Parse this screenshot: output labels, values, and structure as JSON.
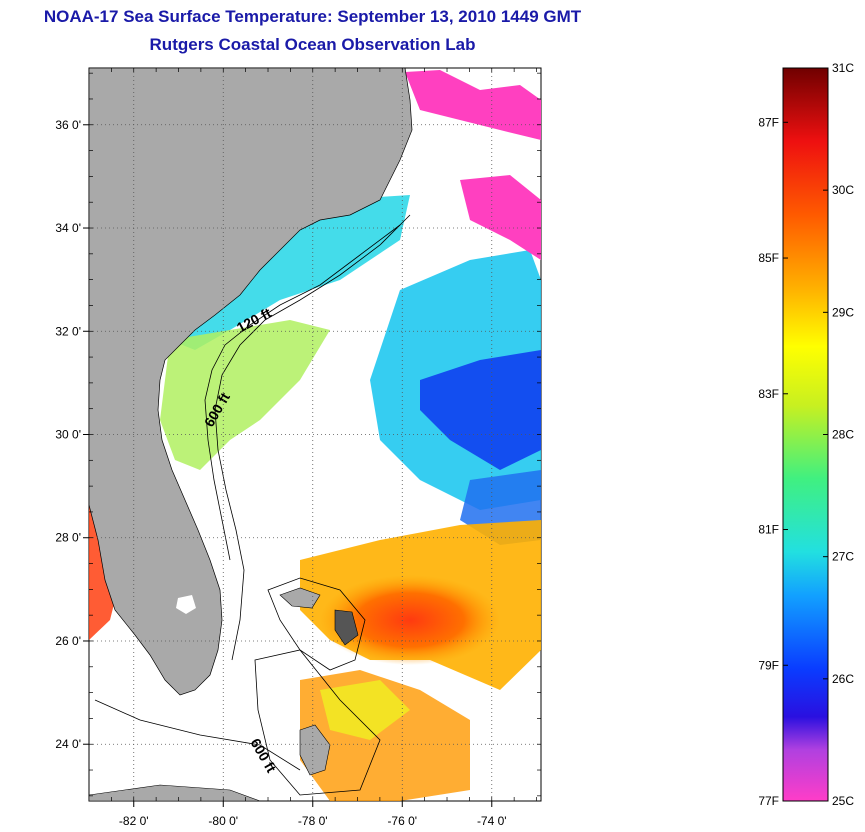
{
  "title": "NOAA-17 Sea Surface Temperature:  September 13, 2010 1449 GMT",
  "subtitle": "Rutgers Coastal Ocean Observation Lab",
  "map": {
    "lon_range": [
      -83.0,
      -72.9
    ],
    "lat_range": [
      22.9,
      37.1
    ],
    "x_ticks": [
      {
        "value": -82,
        "label": "-82 0'"
      },
      {
        "value": -80,
        "label": "-80 0'"
      },
      {
        "value": -78,
        "label": "-78 0'"
      },
      {
        "value": -76,
        "label": "-76 0'"
      },
      {
        "value": -74,
        "label": "-74 0'"
      }
    ],
    "y_ticks": [
      {
        "value": 24,
        "label": "24 0'"
      },
      {
        "value": 26,
        "label": "26 0'"
      },
      {
        "value": 28,
        "label": "28 0'"
      },
      {
        "value": 30,
        "label": "30 0'"
      },
      {
        "value": 32,
        "label": "32 0'"
      },
      {
        "value": 34,
        "label": "34 0'"
      },
      {
        "value": 36,
        "label": "36 0'"
      }
    ],
    "grid": "dotted",
    "contour_labels": [
      "120 ft",
      "600 ft",
      "600 ft"
    ],
    "land_color": "#a9a9a9"
  },
  "colorbar": {
    "min_c": 25,
    "max_c": 31,
    "celsius_ticks": [
      {
        "value": 25,
        "label": "25C"
      },
      {
        "value": 26,
        "label": "26C"
      },
      {
        "value": 27,
        "label": "27C"
      },
      {
        "value": 28,
        "label": "28C"
      },
      {
        "value": 29,
        "label": "29C"
      },
      {
        "value": 30,
        "label": "30C"
      },
      {
        "value": 31,
        "label": "31C"
      }
    ],
    "fahrenheit_ticks": [
      {
        "value": 77,
        "label": "77F"
      },
      {
        "value": 79,
        "label": "79F"
      },
      {
        "value": 81,
        "label": "81F"
      },
      {
        "value": 83,
        "label": "83F"
      },
      {
        "value": 85,
        "label": "85F"
      },
      {
        "value": 87,
        "label": "87F"
      }
    ]
  }
}
